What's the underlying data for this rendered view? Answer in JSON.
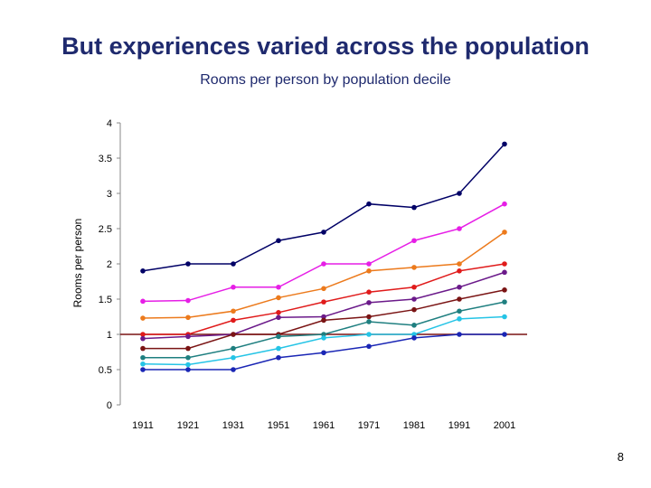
{
  "slide": {
    "title": "But experiences varied across the population",
    "page_number": "8"
  },
  "chart_data": {
    "type": "line",
    "title": "Rooms per person by population decile",
    "xlabel": "",
    "ylabel": "Rooms per person",
    "categories": [
      "1911",
      "1921",
      "1931",
      "1951",
      "1961",
      "1971",
      "1981",
      "1991",
      "2001"
    ],
    "ylim": [
      0,
      4
    ],
    "yticks": [
      "0",
      "0.5",
      "1",
      "1.5",
      "2",
      "2.5",
      "3",
      "3.5",
      "4"
    ],
    "grid": false,
    "reference_line": 1,
    "series": [
      {
        "color": "#000066",
        "values": [
          1.9,
          2.0,
          2.0,
          2.33,
          2.45,
          2.85,
          2.8,
          3.0,
          3.7
        ]
      },
      {
        "color": "#e61ee6",
        "values": [
          1.47,
          1.48,
          1.67,
          1.67,
          2.0,
          2.0,
          2.33,
          2.5,
          2.85
        ]
      },
      {
        "color": "#ec7a1c",
        "values": [
          1.23,
          1.24,
          1.33,
          1.52,
          1.65,
          1.9,
          1.95,
          2.0,
          2.45
        ]
      },
      {
        "color": "#e01b1b",
        "values": [
          1.0,
          1.0,
          1.2,
          1.31,
          1.46,
          1.6,
          1.67,
          1.9,
          2.0
        ]
      },
      {
        "color": "#6b1a8a",
        "values": [
          0.94,
          0.97,
          1.0,
          1.24,
          1.25,
          1.45,
          1.5,
          1.67,
          1.88
        ]
      },
      {
        "color": "#7a1414",
        "values": [
          0.8,
          0.8,
          1.0,
          1.0,
          1.2,
          1.25,
          1.35,
          1.5,
          1.63
        ]
      },
      {
        "color": "#1f7f80",
        "values": [
          0.67,
          0.67,
          0.8,
          0.97,
          1.0,
          1.18,
          1.13,
          1.33,
          1.46
        ]
      },
      {
        "color": "#25c4e6",
        "values": [
          0.58,
          0.57,
          0.67,
          0.8,
          0.95,
          1.0,
          1.0,
          1.22,
          1.25
        ]
      },
      {
        "color": "#1a26b5",
        "values": [
          0.5,
          0.5,
          0.5,
          0.67,
          0.74,
          0.83,
          0.95,
          1.0,
          1.0
        ]
      }
    ]
  }
}
